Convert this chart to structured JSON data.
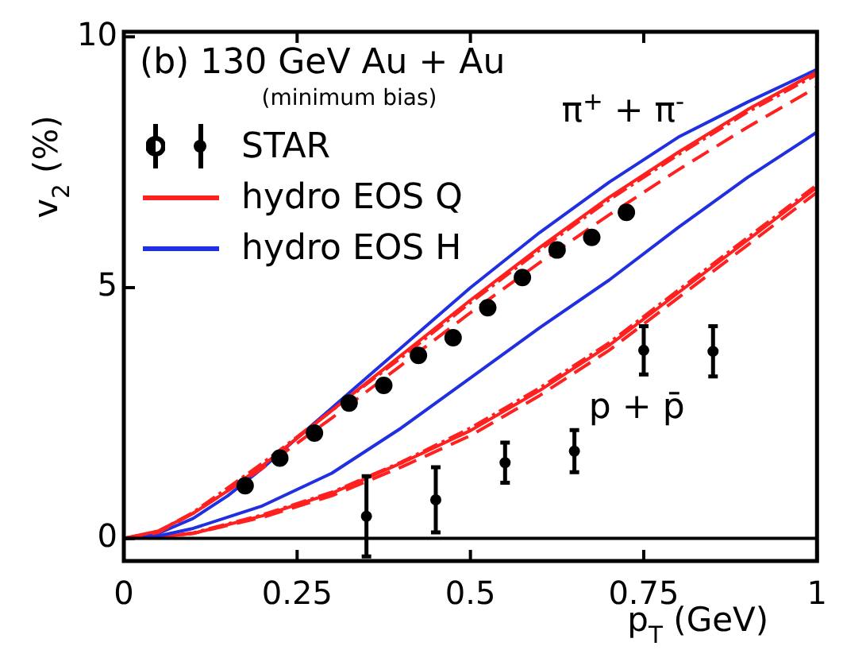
{
  "chart_data": {
    "type": "line",
    "title": "(b) 130 GeV Au + Au",
    "subtitle": "(minimum bias)",
    "xlabel": "p$_{T}$ (GeV)",
    "ylabel": "v$_{2}$ (%)",
    "xlim": [
      0,
      1
    ],
    "ylim": [
      -0.45,
      10.1
    ],
    "xticks": [
      0,
      0.25,
      0.5,
      0.75,
      1
    ],
    "yticks": [
      0,
      5,
      10
    ],
    "grid": false,
    "legend": "top left",
    "ref_lines": [
      {
        "axis": "y",
        "value": 0,
        "color": "#000000"
      }
    ],
    "annotations": [
      "π$^{+}$ + π$^{-}$",
      "p + p̄"
    ],
    "series": [
      {
        "name": "STAR",
        "type": "scatter",
        "marker": "circle",
        "color": "#000000",
        "x": [
          0.175,
          0.225,
          0.275,
          0.325,
          0.375,
          0.425,
          0.475,
          0.525,
          0.575,
          0.625,
          0.675,
          0.725
        ],
        "values": [
          1.05,
          1.6,
          2.1,
          2.7,
          3.05,
          3.65,
          4.0,
          4.6,
          5.2,
          5.75,
          6.0,
          6.5
        ]
      },
      {
        "type": "scatter",
        "marker": "circle",
        "color": "#000000",
        "x": [
          0.35,
          0.45,
          0.55,
          0.65,
          0.75,
          0.85
        ],
        "values": [
          0.44,
          0.77,
          1.51,
          1.74,
          3.75,
          3.73
        ],
        "errors": [
          0.8,
          0.65,
          0.4,
          0.42,
          0.48,
          0.5
        ]
      },
      {
        "name": "hydro EOS Q",
        "type": "line",
        "line_style": "solid",
        "color": "#ff2020",
        "x": [
          0,
          0.05,
          0.1,
          0.15,
          0.2,
          0.25,
          0.3,
          0.35,
          0.4,
          0.5,
          0.6,
          0.7,
          0.8,
          0.9,
          1.0
        ],
        "values": [
          0,
          0.15,
          0.5,
          0.95,
          1.45,
          2.0,
          2.55,
          3.1,
          3.65,
          4.75,
          5.8,
          6.8,
          7.7,
          8.55,
          9.3
        ]
      },
      {
        "type": "line",
        "line_style": "dashed",
        "color": "#ff2020",
        "x": [
          0,
          0.05,
          0.1,
          0.2,
          0.3,
          0.4,
          0.5,
          0.6,
          0.7,
          0.8,
          0.9,
          1.0
        ],
        "values": [
          0,
          0.12,
          0.5,
          1.4,
          2.4,
          3.45,
          4.5,
          5.5,
          6.45,
          7.35,
          8.2,
          9.0
        ]
      },
      {
        "type": "line",
        "line_style": "dotted",
        "color": "#ff2020",
        "x": [
          0,
          0.05,
          0.1,
          0.2,
          0.3,
          0.4,
          0.5,
          0.6,
          0.7,
          0.8,
          0.9,
          1.0
        ],
        "values": [
          0,
          0.14,
          0.52,
          1.5,
          2.55,
          3.6,
          4.7,
          5.75,
          6.75,
          7.65,
          8.5,
          9.25
        ]
      },
      {
        "name": "hydro EOS H",
        "type": "line",
        "line_style": "solid",
        "color": "#2030e0",
        "x": [
          0,
          0.05,
          0.1,
          0.15,
          0.2,
          0.25,
          0.3,
          0.35,
          0.4,
          0.45,
          0.5,
          0.6,
          0.7,
          0.8,
          0.9,
          1.0
        ],
        "values": [
          0,
          0.1,
          0.4,
          0.85,
          1.4,
          2.0,
          2.6,
          3.2,
          3.8,
          4.4,
          5.0,
          6.1,
          7.1,
          8.0,
          8.7,
          9.35
        ]
      },
      {
        "type": "line",
        "line_style": "solid",
        "color": "#2030e0",
        "x": [
          0,
          0.05,
          0.1,
          0.2,
          0.3,
          0.4,
          0.5,
          0.6,
          0.7,
          0.8,
          0.9,
          1.0
        ],
        "values": [
          0,
          0.05,
          0.2,
          0.65,
          1.3,
          2.2,
          3.2,
          4.2,
          5.15,
          6.2,
          7.2,
          8.1
        ]
      },
      {
        "type": "line",
        "line_style": "solid",
        "color": "#ff2020",
        "x": [
          0,
          0.05,
          0.1,
          0.2,
          0.3,
          0.4,
          0.5,
          0.6,
          0.7,
          0.8,
          0.9,
          1.0
        ],
        "values": [
          0,
          0.03,
          0.1,
          0.45,
          0.9,
          1.5,
          2.15,
          2.95,
          3.85,
          4.9,
          5.95,
          7.0
        ]
      },
      {
        "type": "line",
        "line_style": "dashed",
        "color": "#ff2020",
        "x": [
          0,
          0.05,
          0.1,
          0.2,
          0.3,
          0.4,
          0.5,
          0.6,
          0.7,
          0.8,
          0.9,
          1.0
        ],
        "values": [
          0,
          0.03,
          0.1,
          0.42,
          0.85,
          1.42,
          2.05,
          2.85,
          3.75,
          4.8,
          5.85,
          6.9
        ]
      },
      {
        "type": "line",
        "line_style": "dotted",
        "color": "#ff2020",
        "x": [
          0,
          0.05,
          0.1,
          0.2,
          0.3,
          0.4,
          0.5,
          0.6,
          0.7,
          0.8,
          0.9,
          1.0
        ],
        "values": [
          0,
          0.03,
          0.11,
          0.47,
          0.92,
          1.52,
          2.2,
          3.0,
          3.9,
          4.95,
          6.0,
          7.05
        ]
      }
    ]
  }
}
